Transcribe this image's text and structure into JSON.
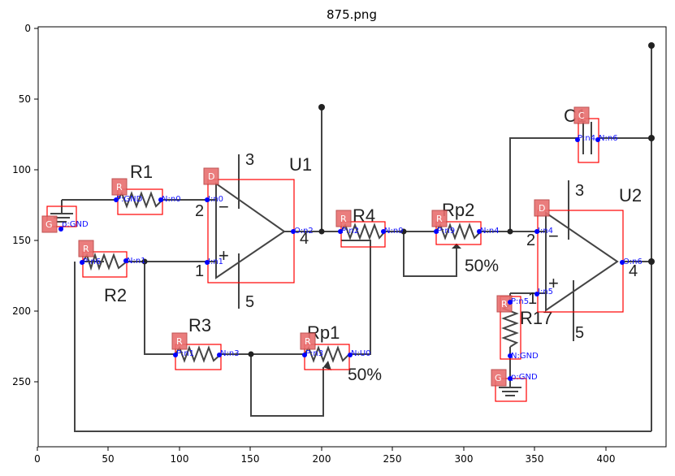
{
  "plot_title": "875.png",
  "x_ticks": [
    "0",
    "50",
    "100",
    "150",
    "200",
    "250",
    "300",
    "350",
    "400"
  ],
  "y_ticks": [
    "0",
    "50",
    "100",
    "150",
    "200",
    "250"
  ],
  "circuit_labels": {
    "r1": "R1",
    "r2": "R2",
    "r3": "R3",
    "r4": "R4",
    "rp1": "Rp1",
    "rp2": "Rp2",
    "r17": "R17",
    "u1": "U1",
    "u2": "U2",
    "c1": "C1",
    "u1_pin3": "3",
    "u1_pin2": "2",
    "u1_pin1": "1",
    "u1_pin4": "4",
    "u1_pin5": "5",
    "u2_pin3": "3",
    "u2_pin2": "2",
    "u2_pin1": "1",
    "u2_pin4": "4",
    "u2_pin5": "5",
    "u1_minus": "−",
    "u1_plus": "+",
    "u2_minus": "−",
    "u2_plus": "+",
    "pct_rp1": "50%",
    "pct_rp2": "50%"
  },
  "badges": {
    "r1": "R",
    "r2": "R",
    "r3": "R",
    "r4": "R",
    "rp1": "R",
    "rp2": "R",
    "r17": "R",
    "g1": "G",
    "g2": "G",
    "u1": "D",
    "u2": "D",
    "c1": "C"
  },
  "pins": {
    "r1_p": "P:GND",
    "r1_n": "N:n0",
    "u1_in": "I:n0",
    "u1_out": "O:n2",
    "u1_in1": "I:n1",
    "g1": "p:GND",
    "r2_p": "P:n6",
    "r2_n": "N:n1",
    "r4_p": "P:n2",
    "r4_n": "N:n9",
    "rp2_p": "P:n9",
    "rp2_n": "N:n4",
    "u2_in": "I:n4",
    "u2_out": "O:n6",
    "u2_in5": "I:n5",
    "c1_p": "P:n4",
    "c1_n": "N:n6",
    "r3_p": "P:n1",
    "r3_n": "N:n3",
    "rp1_p": "P:n3",
    "rp1_n": "N:U0",
    "r17_p": "P:n5",
    "r17_n": "N:GND",
    "g2": "p:GND"
  }
}
